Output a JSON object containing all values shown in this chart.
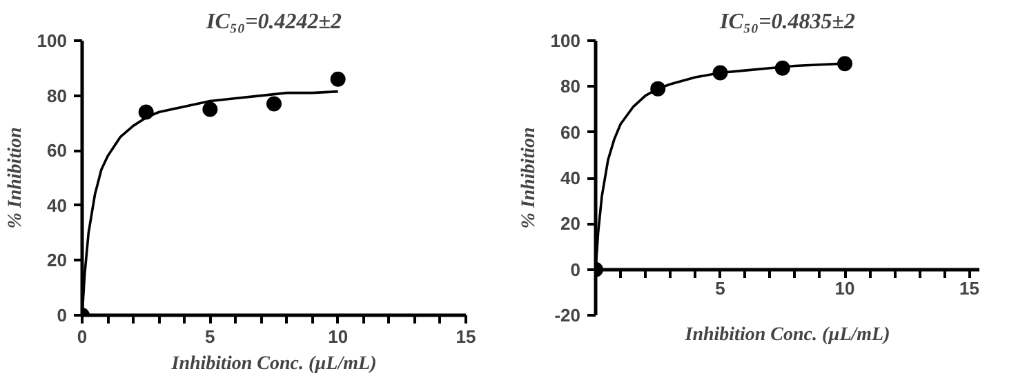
{
  "chart_data": [
    {
      "type": "scatter",
      "title": "IC₅₀=0.4242±2",
      "xlabel": "Inhibition Conc. (µL/mL)",
      "ylabel": "% Inhibition",
      "grid": false,
      "xlim": [
        0,
        15
      ],
      "ylim": [
        0,
        100
      ],
      "xticks": [
        0,
        {
          "value": 1,
          "label": null
        },
        {
          "value": 2,
          "label": null
        },
        {
          "value": 3,
          "label": null
        },
        {
          "value": 4,
          "label": null
        },
        5,
        {
          "value": 6,
          "label": null
        },
        {
          "value": 7,
          "label": null
        },
        {
          "value": 8,
          "label": null
        },
        {
          "value": 9,
          "label": null
        },
        10,
        {
          "value": 11,
          "label": null
        },
        {
          "value": 12,
          "label": null
        },
        {
          "value": 13,
          "label": null
        },
        {
          "value": 14,
          "label": null
        },
        15
      ],
      "yticks": [
        0,
        20,
        40,
        60,
        80,
        100
      ],
      "series": [
        {
          "type": "scatter",
          "color": "#000000",
          "marker": "circle",
          "x": [
            0,
            2.5,
            5,
            7.5,
            10
          ],
          "values": [
            0,
            74,
            75,
            77,
            86
          ]
        },
        {
          "type": "line",
          "color": "#000000",
          "marker": "none",
          "line_style": "solid",
          "x": [
            0,
            0.1,
            0.25,
            0.5,
            0.75,
            1,
            1.5,
            2,
            2.5,
            3,
            4,
            5,
            6,
            7,
            8,
            9,
            10
          ],
          "values": [
            0,
            15,
            30,
            44,
            53,
            58,
            65,
            69,
            72,
            74,
            76,
            78,
            79,
            80,
            81,
            81,
            81.5
          ]
        }
      ]
    },
    {
      "type": "scatter",
      "title": "IC₅₀=0.4835±2",
      "xlabel": "Inhibition Conc. (µL/mL)",
      "ylabel": "% Inhibition",
      "grid": false,
      "xlim": [
        0,
        15.4
      ],
      "ylim": [
        -20,
        100
      ],
      "xticks": [
        {
          "value": 1,
          "label": null
        },
        {
          "value": 2,
          "label": null
        },
        {
          "value": 3,
          "label": null
        },
        {
          "value": 4,
          "label": null
        },
        5,
        {
          "value": 6,
          "label": null
        },
        {
          "value": 7,
          "label": null
        },
        {
          "value": 8,
          "label": null
        },
        {
          "value": 9,
          "label": null
        },
        10,
        {
          "value": 11,
          "label": null
        },
        {
          "value": 12,
          "label": null
        },
        {
          "value": 13,
          "label": null
        },
        {
          "value": 14,
          "label": null
        },
        15
      ],
      "yticks": [
        -20,
        0,
        20,
        40,
        60,
        80,
        100
      ],
      "series": [
        {
          "type": "scatter",
          "color": "#000000",
          "marker": "circle",
          "x": [
            0,
            2.5,
            5,
            7.5,
            10
          ],
          "values": [
            0,
            79,
            86,
            88,
            90
          ]
        },
        {
          "type": "line",
          "color": "#000000",
          "marker": "none",
          "line_style": "solid",
          "x": [
            0,
            0.1,
            0.25,
            0.5,
            0.75,
            1,
            1.5,
            2,
            2.5,
            3,
            4,
            5,
            6,
            7,
            8,
            9,
            10
          ],
          "values": [
            0,
            16,
            32,
            48,
            57,
            63.5,
            71,
            76,
            79,
            81,
            84,
            86,
            87,
            88,
            89,
            89.5,
            90
          ]
        }
      ]
    }
  ]
}
